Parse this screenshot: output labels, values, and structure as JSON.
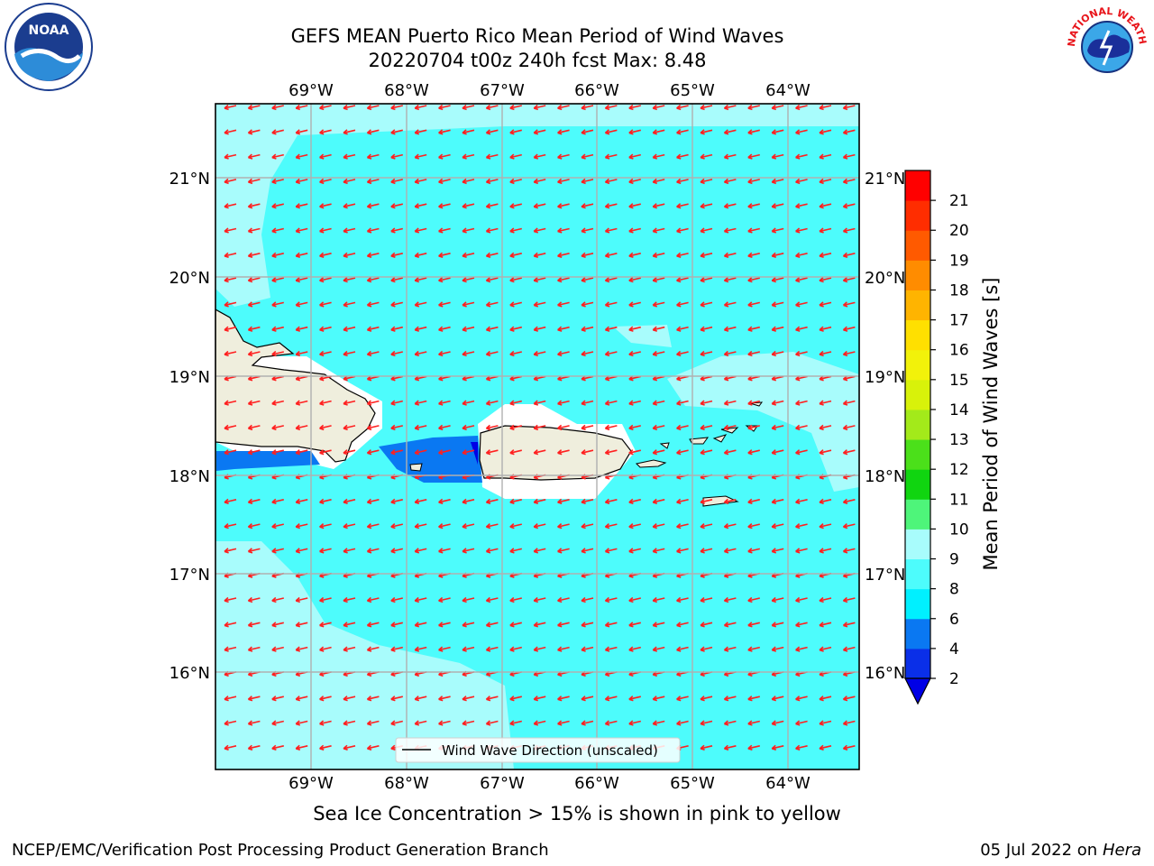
{
  "header": {
    "title_line1": "GEFS MEAN Puerto Rico Mean Period of Wind Waves",
    "title_line2": "20220704 t00z 240h fcst   Max: 8.48"
  },
  "logos": {
    "noaa": {
      "name": "noaa-logo",
      "text": "NOAA"
    },
    "nws": {
      "name": "nws-logo",
      "text": "NATIONAL WEATHER SERVICE"
    }
  },
  "map": {
    "longitude_labels": [
      "69°W",
      "68°W",
      "67°W",
      "66°W",
      "65°W",
      "64°W"
    ],
    "latitude_labels": [
      "21°N",
      "20°N",
      "19°N",
      "18°N",
      "17°N",
      "16°N"
    ],
    "ocean_colors": {
      "period_6_8": "#4dfcfc",
      "period_8_9": "#a8fcfc",
      "period_2_4": "#0a78f2",
      "land": "#efeedd"
    },
    "legend_label": "Wind Wave Direction (unscaled)",
    "arrow_color": "#ff2020"
  },
  "colorbar": {
    "label": "Mean Period of Wind Waves [s]",
    "ticks": [
      "2",
      "4",
      "6",
      "8",
      "9",
      "10",
      "11",
      "12",
      "13",
      "14",
      "15",
      "16",
      "17",
      "18",
      "19",
      "20",
      "21"
    ],
    "colors": [
      "#0a2fe8",
      "#0a78f2",
      "#00f0ff",
      "#4dfcfc",
      "#a8fcfc",
      "#4ef57a",
      "#10d510",
      "#4be01a",
      "#a3ea1a",
      "#d8f20a",
      "#f2f20a",
      "#ffe000",
      "#ffb400",
      "#ff8c00",
      "#ff5a00",
      "#ff2d00",
      "#ff0000"
    ],
    "under_color": "#0000e6"
  },
  "caption": "Sea Ice Concentration > 15% is shown in pink to yellow",
  "footer": {
    "left": "NCEP/EMC/Verification Post Processing Product Generation Branch",
    "right_prefix": "05 Jul 2022 on",
    "right_host": "Hera"
  }
}
